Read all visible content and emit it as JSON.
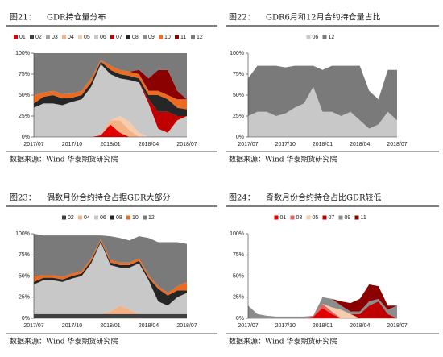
{
  "chart_data": [
    {
      "type": "area",
      "figure": "图21：",
      "title": "GDR持仓量分布",
      "source": "数据来源：Wind 华泰期货研究院",
      "categories": [
        "2017/07",
        null,
        null,
        null,
        "2017/10",
        null,
        null,
        null,
        "2018/01",
        null,
        null,
        null,
        "2018/04",
        null,
        null,
        null,
        "2018/07"
      ],
      "ylim": [
        0,
        100
      ],
      "yticks": [
        {
          "value": 0,
          "label": "0%"
        },
        {
          "value": 25,
          "label": "25%"
        },
        {
          "value": 50,
          "label": "50%"
        },
        {
          "value": 75,
          "label": "75%"
        },
        {
          "value": 100,
          "label": "100%"
        }
      ],
      "series": [
        {
          "name": "01",
          "color": "#e00000",
          "values": [
            0,
            0,
            0,
            0,
            0,
            0,
            0,
            2,
            15,
            5,
            0,
            0,
            0,
            0,
            0,
            0,
            0
          ]
        },
        {
          "name": "02",
          "color": "#404040",
          "values": [
            0,
            0,
            0,
            0,
            0,
            0,
            0,
            0,
            0,
            0,
            0,
            0,
            0,
            0,
            0,
            0,
            0
          ]
        },
        {
          "name": "03",
          "color": "#a6a6a6",
          "values": [
            0,
            0,
            0,
            0,
            0,
            0,
            0,
            0,
            0,
            0,
            0,
            0,
            0,
            0,
            0,
            0,
            0
          ]
        },
        {
          "name": "04",
          "color": "#f4b183",
          "values": [
            0,
            0,
            0,
            0,
            0,
            0,
            0,
            0,
            5,
            15,
            8,
            0,
            0,
            0,
            0,
            0,
            0
          ]
        },
        {
          "name": "05",
          "color": "#f8cbad",
          "values": [
            0,
            0,
            0,
            0,
            0,
            0,
            0,
            0,
            0,
            5,
            10,
            5,
            0,
            0,
            0,
            0,
            0
          ]
        },
        {
          "name": "06",
          "color": "#c8c8c8",
          "values": [
            35,
            40,
            40,
            38,
            42,
            45,
            60,
            85,
            55,
            45,
            50,
            60,
            40,
            10,
            5,
            20,
            25
          ]
        },
        {
          "name": "07",
          "color": "#c00000",
          "values": [
            0,
            0,
            0,
            0,
            0,
            0,
            0,
            0,
            0,
            0,
            0,
            0,
            5,
            20,
            25,
            5,
            0
          ]
        },
        {
          "name": "08",
          "color": "#262626",
          "values": [
            5,
            8,
            10,
            8,
            5,
            5,
            5,
            3,
            5,
            5,
            5,
            5,
            5,
            20,
            15,
            10,
            8
          ]
        },
        {
          "name": "09",
          "color": "#8c8c8c",
          "values": [
            0,
            0,
            0,
            0,
            0,
            0,
            0,
            0,
            0,
            0,
            0,
            0,
            0,
            0,
            0,
            0,
            0
          ]
        },
        {
          "name": "10",
          "color": "#ed6b21",
          "values": [
            10,
            5,
            5,
            5,
            5,
            5,
            5,
            2,
            5,
            5,
            5,
            5,
            5,
            5,
            5,
            10,
            12
          ]
        },
        {
          "name": "11",
          "color": "#8b0000",
          "values": [
            0,
            0,
            0,
            0,
            0,
            0,
            0,
            0,
            0,
            0,
            0,
            5,
            15,
            25,
            30,
            10,
            0
          ]
        },
        {
          "name": "12",
          "color": "#7a7a7a",
          "values": [
            50,
            47,
            45,
            49,
            48,
            45,
            30,
            8,
            15,
            20,
            22,
            20,
            30,
            20,
            20,
            45,
            55
          ]
        }
      ]
    },
    {
      "type": "area",
      "figure": "图22：",
      "title": "GDR6月和12月合约持仓量占比",
      "source": "数据来源：Wind 华泰期货研究院",
      "categories": [
        "2017/07",
        null,
        null,
        null,
        "2017/10",
        null,
        null,
        null,
        "2018/01",
        null,
        null,
        null,
        "2018/04",
        null,
        null,
        null,
        "2018/07"
      ],
      "ylim": [
        0,
        100
      ],
      "yticks": [
        {
          "value": 0,
          "label": "0%"
        },
        {
          "value": 25,
          "label": "25%"
        },
        {
          "value": 50,
          "label": "50%"
        },
        {
          "value": 75,
          "label": "75%"
        },
        {
          "value": 100,
          "label": "100%"
        }
      ],
      "series": [
        {
          "name": "06",
          "color": "#c8c8c8",
          "values": [
            25,
            30,
            30,
            25,
            28,
            35,
            40,
            60,
            30,
            30,
            25,
            30,
            20,
            10,
            15,
            30,
            20
          ]
        },
        {
          "name": "12",
          "color": "#7a7a7a",
          "values": [
            45,
            55,
            55,
            60,
            55,
            50,
            45,
            25,
            50,
            55,
            60,
            55,
            65,
            45,
            30,
            50,
            60
          ]
        }
      ]
    },
    {
      "type": "area",
      "figure": "图23：",
      "title": "偶数月份合约持仓占据GDR大部分",
      "source": "数据来源：Wind 华泰期货研究院",
      "categories": [
        "2017/07",
        null,
        null,
        null,
        "2017/10",
        null,
        null,
        null,
        "2018/01",
        null,
        null,
        null,
        "2018/04",
        null,
        null,
        null,
        "2018/07"
      ],
      "ylim": [
        0,
        100
      ],
      "yticks": [
        {
          "value": 0,
          "label": "0%"
        },
        {
          "value": 25,
          "label": "25%"
        },
        {
          "value": 50,
          "label": "50%"
        },
        {
          "value": 75,
          "label": "75%"
        },
        {
          "value": 100,
          "label": "100%"
        }
      ],
      "series": [
        {
          "name": "02",
          "color": "#404040",
          "values": [
            5,
            5,
            5,
            5,
            5,
            5,
            5,
            5,
            5,
            5,
            5,
            5,
            5,
            5,
            5,
            5,
            5
          ]
        },
        {
          "name": "04",
          "color": "#f4b183",
          "values": [
            0,
            0,
            0,
            0,
            0,
            0,
            0,
            0,
            3,
            10,
            5,
            0,
            0,
            0,
            0,
            0,
            0
          ]
        },
        {
          "name": "06",
          "color": "#c8c8c8",
          "values": [
            35,
            40,
            40,
            38,
            42,
            45,
            60,
            85,
            55,
            45,
            50,
            60,
            40,
            15,
            10,
            20,
            25
          ]
        },
        {
          "name": "08",
          "color": "#262626",
          "values": [
            3,
            3,
            3,
            3,
            3,
            3,
            3,
            2,
            3,
            3,
            3,
            3,
            3,
            15,
            12,
            8,
            3
          ]
        },
        {
          "name": "10",
          "color": "#ed6b21",
          "values": [
            7,
            3,
            3,
            3,
            3,
            3,
            3,
            2,
            3,
            3,
            3,
            3,
            3,
            3,
            3,
            5,
            10
          ]
        },
        {
          "name": "12",
          "color": "#7a7a7a",
          "values": [
            50,
            47,
            47,
            49,
            45,
            42,
            27,
            4,
            28,
            29,
            26,
            26,
            44,
            52,
            60,
            52,
            45
          ]
        }
      ]
    },
    {
      "type": "area",
      "figure": "图24：",
      "title": "奇数月份合约持仓占比GDR较低",
      "source": "数据来源：Wind 华泰期货研究院",
      "categories": [
        "2017/07",
        null,
        null,
        null,
        "2017/10",
        null,
        null,
        null,
        "2018/01",
        null,
        null,
        null,
        "2018/04",
        null,
        null,
        null,
        "2018/07"
      ],
      "ylim": [
        0,
        100
      ],
      "yticks": [
        {
          "value": 0,
          "label": "0%"
        },
        {
          "value": 25,
          "label": "25%"
        },
        {
          "value": 50,
          "label": "50%"
        },
        {
          "value": 75,
          "label": "75%"
        },
        {
          "value": 100,
          "label": "100%"
        }
      ],
      "series": [
        {
          "name": "01",
          "color": "#e00000",
          "values": [
            0,
            0,
            0,
            0,
            0,
            0,
            0,
            2,
            12,
            5,
            0,
            0,
            0,
            0,
            0,
            0,
            0
          ]
        },
        {
          "name": "03",
          "color": "#e06060",
          "values": [
            0,
            0,
            0,
            0,
            0,
            0,
            0,
            0,
            5,
            3,
            0,
            0,
            0,
            0,
            0,
            0,
            0
          ]
        },
        {
          "name": "05",
          "color": "#f8cbad",
          "values": [
            0,
            0,
            0,
            0,
            0,
            0,
            0,
            0,
            0,
            5,
            10,
            5,
            0,
            0,
            0,
            0,
            0
          ]
        },
        {
          "name": "07",
          "color": "#c00000",
          "values": [
            0,
            0,
            0,
            0,
            0,
            0,
            0,
            0,
            0,
            0,
            0,
            0,
            5,
            15,
            20,
            5,
            0
          ]
        },
        {
          "name": "09",
          "color": "#8c8c8c",
          "values": [
            15,
            5,
            3,
            2,
            2,
            2,
            2,
            1,
            8,
            10,
            5,
            3,
            3,
            5,
            3,
            5,
            15
          ]
        },
        {
          "name": "11",
          "color": "#8b0000",
          "values": [
            0,
            0,
            0,
            0,
            0,
            0,
            0,
            0,
            0,
            0,
            5,
            10,
            15,
            20,
            15,
            5,
            0
          ]
        }
      ]
    }
  ]
}
